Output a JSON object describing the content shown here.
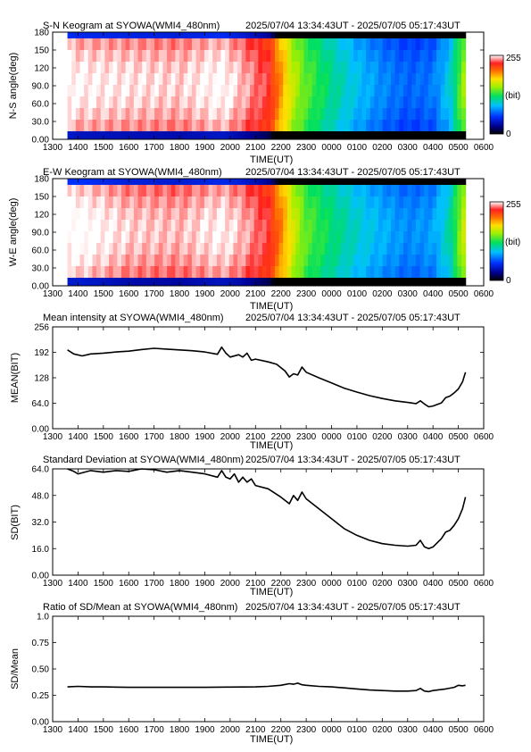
{
  "chart_data": [
    {
      "type": "heatmap",
      "title": "S-N Keogram at SYOWA(WMI4_480nm)",
      "subtitle": "2025/07/04 13:34:43UT - 2025/07/05 05:17:43UT",
      "xlabel": "TIME(UT)",
      "ylabel": "N-S angle(deg)",
      "x_ticks": [
        "1300",
        "1400",
        "1500",
        "1600",
        "1700",
        "1800",
        "1900",
        "2000",
        "2100",
        "2200",
        "2300",
        "0000",
        "0100",
        "0200",
        "0300",
        "0400",
        "0500",
        "0600"
      ],
      "y_ticks": [
        "0.00",
        "30.0",
        "60.0",
        "90.0",
        "120",
        "150",
        "180"
      ],
      "ylim": [
        0,
        180
      ],
      "colorbar": {
        "min_label": "0",
        "max_label": "255",
        "unit_label": "(bit)"
      },
      "intensity_profile": [
        {
          "time": "13:35",
          "level": 0.96
        },
        {
          "time": "14:00",
          "level": 0.95
        },
        {
          "time": "16:00",
          "level": 0.94
        },
        {
          "time": "18:00",
          "level": 0.93
        },
        {
          "time": "19:40",
          "level": 0.96
        },
        {
          "time": "20:30",
          "level": 0.92
        },
        {
          "time": "21:30",
          "level": 0.86
        },
        {
          "time": "22:00",
          "level": 0.72
        },
        {
          "time": "22:30",
          "level": 0.58
        },
        {
          "time": "23:00",
          "level": 0.5
        },
        {
          "time": "00:00",
          "level": 0.4
        },
        {
          "time": "01:00",
          "level": 0.32
        },
        {
          "time": "02:00",
          "level": 0.26
        },
        {
          "time": "03:00",
          "level": 0.22
        },
        {
          "time": "04:00",
          "level": 0.24
        },
        {
          "time": "04:40",
          "level": 0.34
        },
        {
          "time": "05:17",
          "level": 0.58
        }
      ]
    },
    {
      "type": "heatmap",
      "title": "E-W Keogram at SYOWA(WMI4_480nm)",
      "subtitle": "2025/07/04 13:34:43UT - 2025/07/05 05:17:43UT",
      "xlabel": "TIME(UT)",
      "ylabel": "W-E angle(deg)",
      "x_ticks": [
        "1300",
        "1400",
        "1500",
        "1600",
        "1700",
        "1800",
        "1900",
        "2000",
        "2100",
        "2200",
        "2300",
        "0000",
        "0100",
        "0200",
        "0300",
        "0400",
        "0500",
        "0600"
      ],
      "y_ticks": [
        "0.00",
        "30.0",
        "60.0",
        "90.0",
        "120",
        "150",
        "180"
      ],
      "ylim": [
        0,
        180
      ],
      "colorbar": {
        "min_label": "0",
        "max_label": "255",
        "unit_label": "(bit)"
      },
      "intensity_profile": [
        {
          "time": "13:35",
          "level": 0.96
        },
        {
          "time": "14:00",
          "level": 0.97
        },
        {
          "time": "16:00",
          "level": 0.93
        },
        {
          "time": "18:00",
          "level": 0.92
        },
        {
          "time": "19:40",
          "level": 0.95
        },
        {
          "time": "20:30",
          "level": 0.92
        },
        {
          "time": "21:30",
          "level": 0.86
        },
        {
          "time": "22:00",
          "level": 0.74
        },
        {
          "time": "22:30",
          "level": 0.6
        },
        {
          "time": "23:00",
          "level": 0.5
        },
        {
          "time": "00:00",
          "level": 0.42
        },
        {
          "time": "01:00",
          "level": 0.35
        },
        {
          "time": "02:00",
          "level": 0.3
        },
        {
          "time": "03:00",
          "level": 0.26
        },
        {
          "time": "04:00",
          "level": 0.28
        },
        {
          "time": "04:40",
          "level": 0.38
        },
        {
          "time": "05:17",
          "level": 0.62
        }
      ]
    },
    {
      "type": "line",
      "title": "Mean intensity at SYOWA(WMI4_480nm)",
      "subtitle": "2025/07/04 13:34:43UT - 2025/07/05 05:17:43UT",
      "xlabel": "TIME(UT)",
      "ylabel": "MEAN(BIT)",
      "x_ticks": [
        "1300",
        "1400",
        "1500",
        "1600",
        "1700",
        "1800",
        "1900",
        "2000",
        "2100",
        "2200",
        "2300",
        "0000",
        "0100",
        "0200",
        "0300",
        "0400",
        "0500",
        "0600"
      ],
      "y_ticks": [
        "0.00",
        "64.0",
        "128",
        "192",
        "256"
      ],
      "ylim": [
        0,
        256
      ],
      "series": [
        {
          "points": [
            [
              "13:35",
              198
            ],
            [
              "13:50",
              188
            ],
            [
              "14:10",
              183
            ],
            [
              "14:30",
              188
            ],
            [
              "15:00",
              190
            ],
            [
              "15:30",
              193
            ],
            [
              "16:00",
              195
            ],
            [
              "16:30",
              199
            ],
            [
              "17:00",
              202
            ],
            [
              "17:30",
              200
            ],
            [
              "18:00",
              198
            ],
            [
              "18:30",
              196
            ],
            [
              "19:00",
              193
            ],
            [
              "19:30",
              187
            ],
            [
              "19:40",
              205
            ],
            [
              "19:50",
              190
            ],
            [
              "20:00",
              180
            ],
            [
              "20:20",
              186
            ],
            [
              "20:30",
              180
            ],
            [
              "20:40",
              190
            ],
            [
              "20:50",
              172
            ],
            [
              "21:00",
              175
            ],
            [
              "21:30",
              168
            ],
            [
              "21:50",
              162
            ],
            [
              "22:10",
              145
            ],
            [
              "22:20",
              130
            ],
            [
              "22:30",
              138
            ],
            [
              "22:40",
              135
            ],
            [
              "22:50",
              155
            ],
            [
              "23:00",
              142
            ],
            [
              "23:30",
              128
            ],
            [
              "00:00",
              115
            ],
            [
              "00:30",
              102
            ],
            [
              "01:00",
              92
            ],
            [
              "01:30",
              83
            ],
            [
              "02:00",
              76
            ],
            [
              "02:30",
              70
            ],
            [
              "03:00",
              66
            ],
            [
              "03:20",
              63
            ],
            [
              "03:30",
              70
            ],
            [
              "03:40",
              62
            ],
            [
              "03:50",
              55
            ],
            [
              "04:00",
              57
            ],
            [
              "04:20",
              65
            ],
            [
              "04:30",
              78
            ],
            [
              "04:40",
              82
            ],
            [
              "04:50",
              90
            ],
            [
              "05:00",
              100
            ],
            [
              "05:10",
              118
            ],
            [
              "05:17",
              142
            ]
          ]
        }
      ]
    },
    {
      "type": "line",
      "title": "Standard Deviation at SYOWA(WMI4_480nm)",
      "subtitle": "2025/07/04 13:34:43UT - 2025/07/05 05:17:43UT",
      "xlabel": "TIME(UT)",
      "ylabel": "SD(BIT)",
      "x_ticks": [
        "1300",
        "1400",
        "1500",
        "1600",
        "1700",
        "1800",
        "1900",
        "2000",
        "2100",
        "2200",
        "2300",
        "0000",
        "0100",
        "0200",
        "0300",
        "0400",
        "0500",
        "0600"
      ],
      "y_ticks": [
        "0.00",
        "16.0",
        "32.0",
        "48.0",
        "64.0"
      ],
      "ylim": [
        0,
        64
      ],
      "series": [
        {
          "points": [
            [
              "13:35",
              64
            ],
            [
              "13:50",
              62.5
            ],
            [
              "14:00",
              61
            ],
            [
              "14:30",
              63
            ],
            [
              "15:00",
              62
            ],
            [
              "15:30",
              63
            ],
            [
              "16:00",
              62.5
            ],
            [
              "16:30",
              64
            ],
            [
              "17:00",
              63.5
            ],
            [
              "17:30",
              62
            ],
            [
              "18:00",
              63
            ],
            [
              "18:30",
              62
            ],
            [
              "19:00",
              61
            ],
            [
              "19:30",
              59
            ],
            [
              "19:40",
              63
            ],
            [
              "19:50",
              59
            ],
            [
              "20:00",
              58
            ],
            [
              "20:10",
              61
            ],
            [
              "20:20",
              56
            ],
            [
              "20:30",
              59
            ],
            [
              "20:40",
              56
            ],
            [
              "20:50",
              58
            ],
            [
              "21:00",
              54
            ],
            [
              "21:30",
              52
            ],
            [
              "22:00",
              47
            ],
            [
              "22:20",
              43
            ],
            [
              "22:30",
              48
            ],
            [
              "22:40",
              45
            ],
            [
              "22:50",
              50
            ],
            [
              "23:00",
              46
            ],
            [
              "23:30",
              40
            ],
            [
              "00:00",
              34
            ],
            [
              "00:30",
              28
            ],
            [
              "01:00",
              24
            ],
            [
              "01:30",
              21
            ],
            [
              "02:00",
              19
            ],
            [
              "02:30",
              18
            ],
            [
              "03:00",
              17.5
            ],
            [
              "03:20",
              18
            ],
            [
              "03:30",
              21
            ],
            [
              "03:40",
              17
            ],
            [
              "03:50",
              16
            ],
            [
              "04:00",
              17
            ],
            [
              "04:20",
              22
            ],
            [
              "04:30",
              26
            ],
            [
              "04:40",
              27
            ],
            [
              "04:50",
              30
            ],
            [
              "05:00",
              34
            ],
            [
              "05:10",
              40
            ],
            [
              "05:17",
              47
            ]
          ]
        }
      ]
    },
    {
      "type": "line",
      "title": "Ratio of SD/Mean at SYOWA(WMI4_480nm)",
      "subtitle": "2025/07/04 13:34:43UT - 2025/07/05 05:17:43UT",
      "xlabel": "TIME(UT)",
      "ylabel": "SD/Mean",
      "x_ticks": [
        "1300",
        "1400",
        "1500",
        "1600",
        "1700",
        "1800",
        "1900",
        "2000",
        "2100",
        "2200",
        "2300",
        "0000",
        "0100",
        "0200",
        "0300",
        "0400",
        "0500",
        "0600"
      ],
      "y_ticks": [
        "0.00",
        "0.25",
        "0.50",
        "0.75",
        "1.0"
      ],
      "ylim": [
        0,
        1
      ],
      "series": [
        {
          "points": [
            [
              "13:35",
              0.33
            ],
            [
              "14:00",
              0.335
            ],
            [
              "14:30",
              0.33
            ],
            [
              "15:00",
              0.33
            ],
            [
              "16:00",
              0.325
            ],
            [
              "17:00",
              0.325
            ],
            [
              "18:00",
              0.325
            ],
            [
              "19:00",
              0.325
            ],
            [
              "20:00",
              0.328
            ],
            [
              "21:00",
              0.33
            ],
            [
              "21:30",
              0.335
            ],
            [
              "22:00",
              0.345
            ],
            [
              "22:20",
              0.36
            ],
            [
              "22:30",
              0.355
            ],
            [
              "22:40",
              0.365
            ],
            [
              "22:50",
              0.35
            ],
            [
              "23:00",
              0.345
            ],
            [
              "23:30",
              0.335
            ],
            [
              "00:00",
              0.33
            ],
            [
              "00:30",
              0.32
            ],
            [
              "01:00",
              0.31
            ],
            [
              "01:30",
              0.3
            ],
            [
              "02:00",
              0.295
            ],
            [
              "02:30",
              0.29
            ],
            [
              "03:00",
              0.29
            ],
            [
              "03:20",
              0.295
            ],
            [
              "03:30",
              0.315
            ],
            [
              "03:40",
              0.29
            ],
            [
              "03:50",
              0.285
            ],
            [
              "04:00",
              0.295
            ],
            [
              "04:30",
              0.31
            ],
            [
              "04:50",
              0.325
            ],
            [
              "05:00",
              0.345
            ],
            [
              "05:10",
              0.34
            ],
            [
              "05:17",
              0.345
            ]
          ]
        }
      ]
    }
  ]
}
